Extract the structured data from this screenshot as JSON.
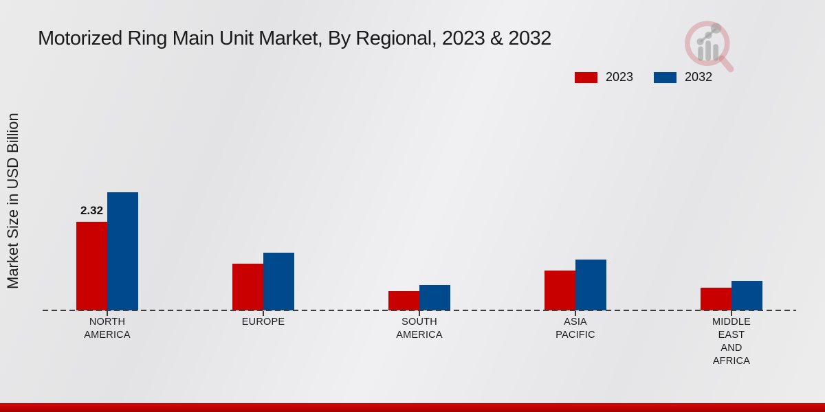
{
  "title": "Motorized Ring Main Unit Market, By Regional, 2023 & 2032",
  "watermark_icon": "magnifier-bar-chart-logo-icon",
  "legend": [
    {
      "label": "2023",
      "color": "#c80000"
    },
    {
      "label": "2032",
      "color": "#00498c"
    }
  ],
  "colors": {
    "series_2023": "#c80000",
    "series_2032": "#00498c",
    "baseline": "#3c3c3c",
    "bottom_band": "#c00202"
  },
  "chart_data": {
    "type": "bar",
    "title": "Motorized Ring Main Unit Market, By Regional, 2023 & 2032",
    "xlabel": "",
    "ylabel": "Market Size in USD Billion",
    "categories": [
      "NORTH AMERICA",
      "EUROPE",
      "SOUTH AMERICA",
      "ASIA PACIFIC",
      "MIDDLE EAST AND AFRICA"
    ],
    "category_label_lines": [
      [
        "NORTH",
        "AMERICA"
      ],
      [
        "EUROPE"
      ],
      [
        "SOUTH",
        "AMERICA"
      ],
      [
        "ASIA",
        "PACIFIC"
      ],
      [
        "MIDDLE",
        "EAST",
        "AND",
        "AFRICA"
      ]
    ],
    "series": [
      {
        "name": "2023",
        "color": "#c80000",
        "values": [
          2.32,
          1.22,
          0.5,
          1.04,
          0.59
        ]
      },
      {
        "name": "2032",
        "color": "#00498c",
        "values": [
          3.09,
          1.51,
          0.67,
          1.33,
          0.77
        ]
      }
    ],
    "ylim": [
      0,
      3.5
    ],
    "grid": false,
    "y_axis_ticks_visible": false,
    "baseline_style": "dashed",
    "legend_position": "top-right",
    "annotations": [
      {
        "series": "2023",
        "category": "NORTH AMERICA",
        "value_label": "2.32"
      }
    ]
  }
}
